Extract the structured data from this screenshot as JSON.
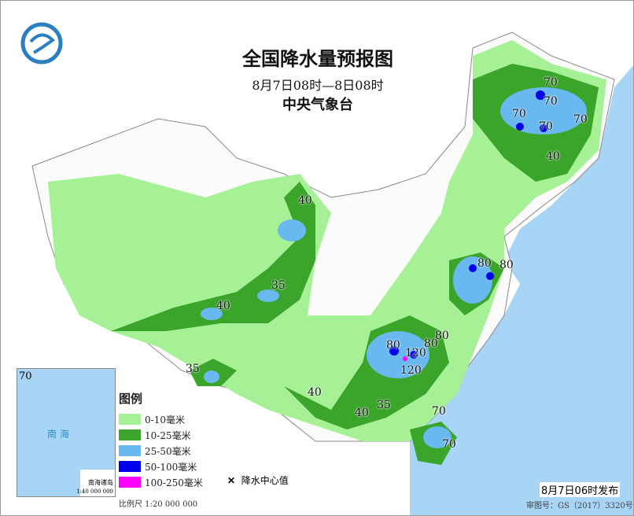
{
  "header": {
    "title": "全国降水量预报图",
    "period": "8月7日08时—8日08时",
    "agency": "中央气象台",
    "logo": "cma-logo"
  },
  "colors": {
    "sea": "#a8d4f5",
    "land": "#ffffff",
    "c0_10": "#a6f095",
    "c10_25": "#3aa52a",
    "c25_50": "#6ab8f0",
    "c50_100": "#0000ee",
    "c100_250": "#ff00ff"
  },
  "legend": {
    "title": "图例",
    "items": [
      {
        "label": "0-10毫米",
        "color": "#a6f095"
      },
      {
        "label": "10-25毫米",
        "color": "#3aa52a"
      },
      {
        "label": "25-50毫米",
        "color": "#6ab8f0"
      },
      {
        "label": "50-100毫米",
        "color": "#0000ee"
      },
      {
        "label": "100-250毫米",
        "color": "#ff00ff"
      }
    ],
    "center_marker": "降水中心值"
  },
  "scale": "比例尺  1:20 000 000",
  "inset": {
    "sea_label": "南 海",
    "islands": "南海诸岛",
    "scale": "1:40 000 000",
    "value": "70"
  },
  "footer": {
    "published": "8月7日06时发布",
    "review_no": "审图号：GS（2017）3320号"
  },
  "centers": [
    "70",
    "70",
    "70",
    "70",
    "70",
    "40",
    "40",
    "35",
    "35",
    "40",
    "40",
    "40",
    "35",
    "80",
    "80",
    "80",
    "80",
    "120",
    "80",
    "120",
    "70",
    "70"
  ]
}
